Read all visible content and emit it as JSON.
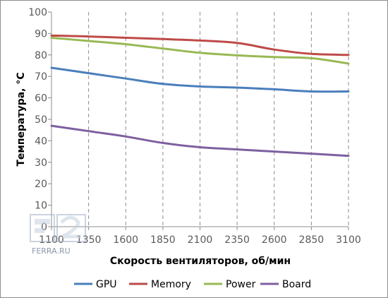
{
  "chart_data": {
    "type": "line",
    "x": [
      1100,
      1350,
      1600,
      1850,
      2100,
      2350,
      2600,
      2850,
      3100
    ],
    "xlabel": "Скорость вентиляторов, об/мин",
    "ylabel": "Температура, °C",
    "xlim": [
      1100,
      3100
    ],
    "ylim": [
      0,
      100
    ],
    "yticks": [
      "0",
      "10",
      "20",
      "30",
      "40",
      "50",
      "60",
      "70",
      "80",
      "90",
      "100"
    ],
    "xticks": [
      "1100",
      "1350",
      "1600",
      "1850",
      "2100",
      "2350",
      "2600",
      "2850",
      "3100"
    ],
    "grid": "vertical-dashed",
    "legend": "bottom",
    "series": [
      {
        "name": "GPU",
        "color": "#4a7ebb",
        "values": [
          74,
          71.5,
          69,
          66.5,
          65.3,
          64.8,
          64,
          63,
          63
        ]
      },
      {
        "name": "Memory",
        "color": "#be4b48",
        "values": [
          89,
          88.6,
          88,
          87.4,
          86.7,
          85.6,
          82.5,
          80.5,
          80
        ]
      },
      {
        "name": "Power",
        "color": "#98b954",
        "values": [
          88,
          86.5,
          85,
          83,
          81,
          79.8,
          79,
          78.5,
          76
        ]
      },
      {
        "name": "Board",
        "color": "#7d60a0",
        "values": [
          47,
          44.5,
          42,
          39,
          37,
          36,
          35,
          34,
          33
        ]
      }
    ]
  },
  "watermark": {
    "text": "FERRA.RU",
    "icon": "ferra-logo-icon"
  }
}
